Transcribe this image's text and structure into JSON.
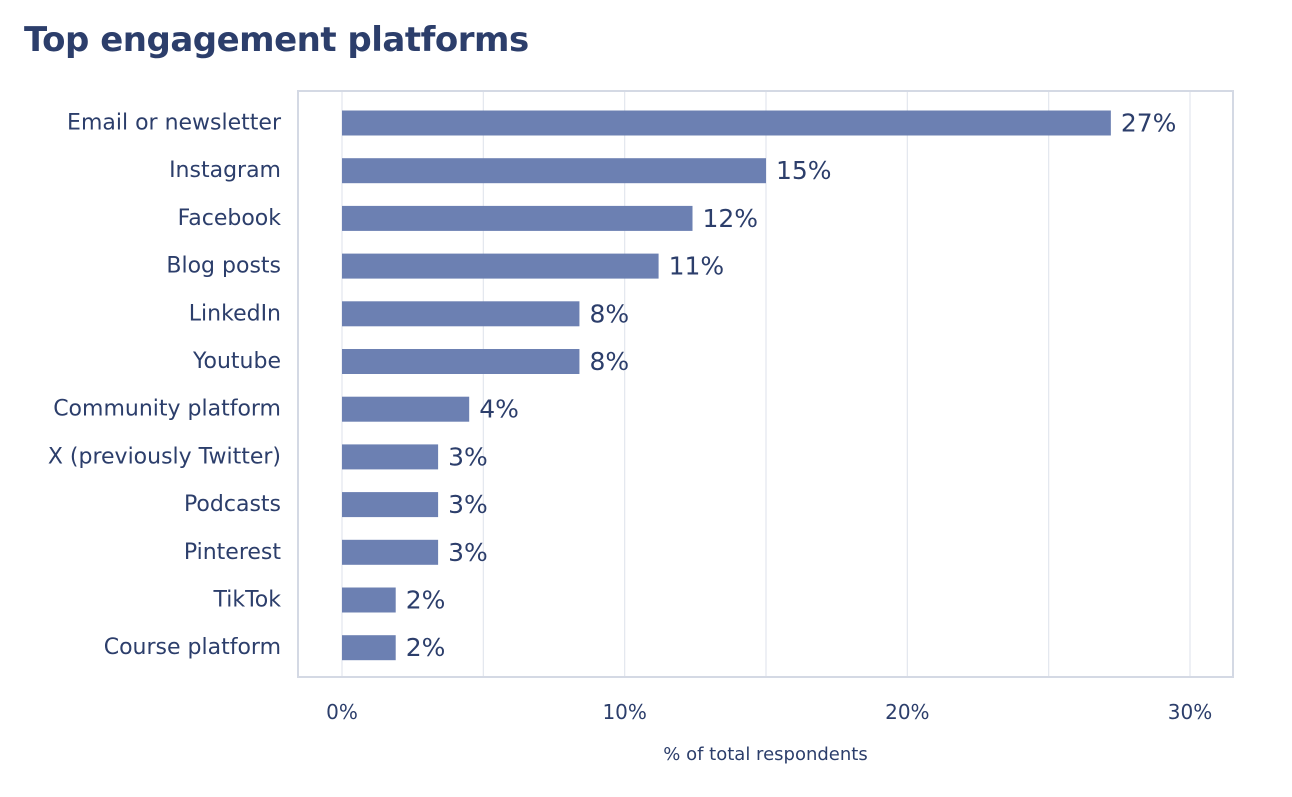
{
  "chart_data": {
    "type": "bar",
    "orientation": "horizontal",
    "title": "Top engagement platforms",
    "xlabel": "% of total respondents",
    "ylabel": "",
    "categories": [
      "Email or newsletter",
      "Instagram",
      "Facebook",
      "Blog posts",
      "LinkedIn",
      "Youtube",
      "Community platform",
      "X (previously Twitter)",
      "Podcasts",
      "Pinterest",
      "TikTok",
      "Course platform"
    ],
    "values": [
      27.2,
      15.0,
      12.4,
      11.2,
      8.4,
      8.4,
      4.5,
      3.4,
      3.4,
      3.4,
      1.9,
      1.9
    ],
    "data_labels": [
      "27%",
      "15%",
      "12%",
      "11%",
      "8%",
      "8%",
      "4%",
      "3%",
      "3%",
      "3%",
      "2%",
      "2%"
    ],
    "xlim": [
      0,
      30
    ],
    "xticks": [
      0,
      10,
      20,
      30
    ],
    "xtick_labels": [
      "0%",
      "10%",
      "20%",
      "30%"
    ],
    "grid": true,
    "legend": "none",
    "colors": {
      "bar": "#6c80b2",
      "text": "#2c3e6b",
      "grid": "#e3e6ee",
      "frame": "#d4d9e4"
    }
  }
}
